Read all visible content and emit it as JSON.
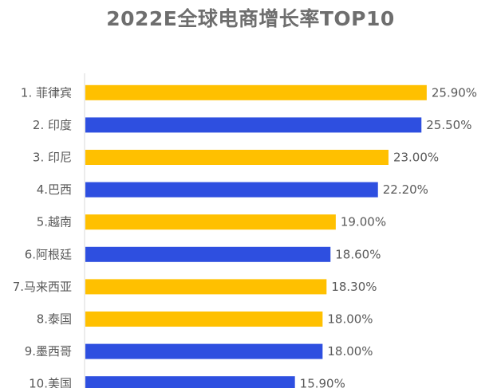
{
  "chart_data": {
    "type": "bar",
    "orientation": "horizontal",
    "title": "2022E全球电商增长率TOP10",
    "xlabel": "",
    "ylabel": "",
    "categories": [
      "1. 菲律宾",
      "2. 印度",
      "3. 印尼",
      "4.巴西",
      "5.越南",
      "6.阿根廷",
      "7.马来西亚",
      "8.泰国",
      "9.墨西哥",
      "10.美国"
    ],
    "values": [
      25.9,
      25.5,
      23.0,
      22.2,
      19.0,
      18.6,
      18.3,
      18.0,
      18.0,
      15.9
    ],
    "value_labels": [
      "25.90%",
      "25.50%",
      "23.00%",
      "22.20%",
      "19.00%",
      "18.60%",
      "18.30%",
      "18.00%",
      "18.00%",
      "15.90%"
    ],
    "xlim": [
      0,
      30
    ],
    "grid": false,
    "legend": "none",
    "bar_colors": [
      "#ffc000",
      "#2e4fe0",
      "#ffc000",
      "#2e4fe0",
      "#ffc000",
      "#2e4fe0",
      "#ffc000",
      "#ffc000",
      "#2e4fe0",
      "#2e4fe0"
    ],
    "axis_color": "#d9d9d9"
  }
}
